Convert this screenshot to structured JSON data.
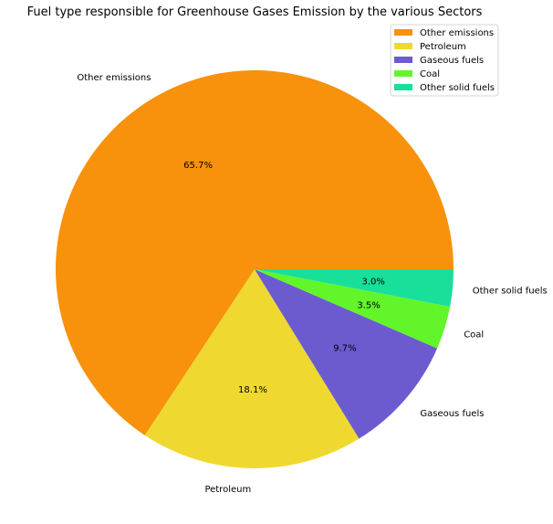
{
  "chart_data": {
    "type": "pie",
    "title": "Fuel type responsible for Greenhouse Gases Emission by the various Sectors",
    "categories": [
      "Other emissions",
      "Petroleum",
      "Gaseous fuels",
      "Coal",
      "Other solid fuels"
    ],
    "values": [
      65.7,
      18.1,
      9.7,
      3.5,
      3.0
    ],
    "value_labels": [
      "65.7%",
      "18.1%",
      "9.7%",
      "3.5%",
      "3.0%"
    ],
    "colors": [
      "#f8910b",
      "#efd930",
      "#6b5bcf",
      "#62f52a",
      "#18e09a"
    ],
    "start_angle_deg": 0,
    "direction": "counterclockwise",
    "legend": {
      "placement": "top-right",
      "entries": [
        "Other emissions",
        "Petroleum",
        "Gaseous fuels",
        "Coal",
        "Other solid fuels"
      ]
    }
  }
}
